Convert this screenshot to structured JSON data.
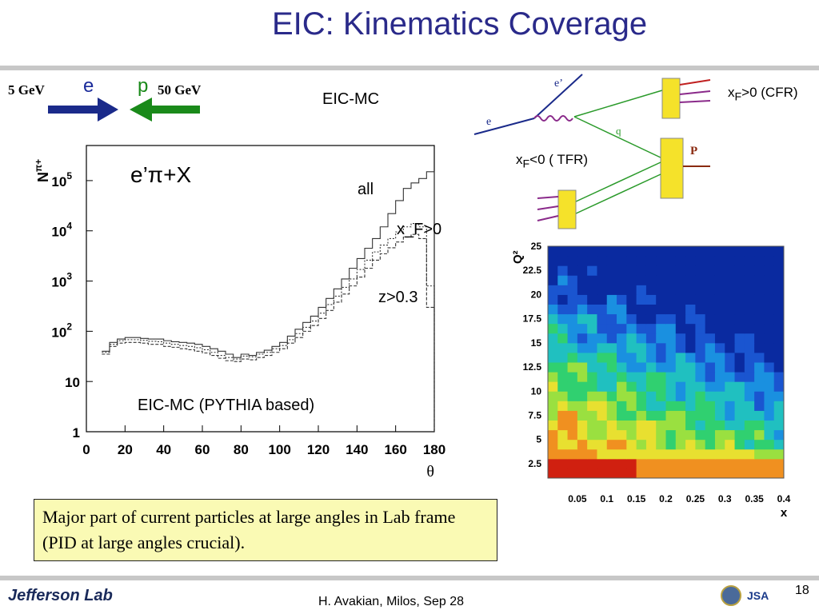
{
  "slide": {
    "title": "EIC: Kinematics Coverage",
    "beam": {
      "e_energy": "5 GeV",
      "e_label": "e",
      "p_label": "p",
      "p_energy": "50 GeV"
    },
    "eicmc_label": "EIC-MC",
    "note": "Major part of current particles at large angles in Lab frame (PID at large angles crucial).",
    "footer": {
      "logo": "Jefferson Lab",
      "text": "H. Avakian, Milos,  Sep 28",
      "page": "18"
    },
    "diagram": {
      "e_label": "e",
      "eprime_label": "e’",
      "q_label": "q",
      "p_label": "P",
      "cfr_label": "x_F>0 (CFR)",
      "tfr_label": "x_F<0 ( TFR)"
    },
    "colors": {
      "title": "#2a2a8a",
      "e_arrow": "#1a2a8a",
      "p_arrow": "#1a8a1a",
      "note_bg": "#fafab4"
    }
  },
  "chart_data": [
    {
      "type": "histogram",
      "title": "",
      "reaction_label": "e’π+X",
      "caption": "EIC-MC (PYTHIA based)",
      "xlabel": "θ",
      "ylabel": "N^π+",
      "xlim": [
        0,
        180
      ],
      "ylim": [
        1,
        500000
      ],
      "yscale": "log",
      "x_ticks": [
        "0",
        "20",
        "40",
        "60",
        "80",
        "100",
        "120",
        "140",
        "160",
        "180"
      ],
      "y_ticks": [
        "1",
        "10",
        "10^2",
        "10^3",
        "10^4",
        "10^5"
      ],
      "bin_edges": [
        8,
        12,
        16,
        20,
        24,
        28,
        32,
        36,
        40,
        44,
        48,
        52,
        56,
        60,
        64,
        68,
        72,
        76,
        80,
        84,
        88,
        92,
        96,
        100,
        104,
        108,
        112,
        116,
        120,
        124,
        128,
        132,
        136,
        140,
        144,
        148,
        152,
        156,
        160,
        164,
        168,
        172,
        176,
        180
      ],
      "series": [
        {
          "name": "all",
          "style": "solid",
          "values": [
            40,
            60,
            70,
            75,
            75,
            72,
            70,
            70,
            65,
            62,
            60,
            58,
            55,
            50,
            45,
            40,
            35,
            30,
            35,
            33,
            38,
            42,
            50,
            60,
            80,
            110,
            150,
            200,
            300,
            450,
            700,
            1100,
            1800,
            2800,
            4500,
            7000,
            12000,
            22000,
            40000,
            70000,
            90000,
            110000,
            150000
          ]
        },
        {
          "name": "x_F>0",
          "style": "dotted",
          "values": [
            38,
            55,
            65,
            68,
            68,
            66,
            63,
            62,
            58,
            55,
            52,
            50,
            47,
            43,
            38,
            33,
            30,
            28,
            32,
            31,
            35,
            38,
            45,
            52,
            68,
            90,
            120,
            160,
            230,
            340,
            500,
            750,
            1100,
            1700,
            2600,
            3800,
            5200,
            7000,
            9500,
            12000,
            14000,
            12000,
            800
          ]
        },
        {
          "name": "z>0.3",
          "style": "dashed",
          "values": [
            35,
            50,
            58,
            60,
            60,
            58,
            55,
            55,
            50,
            48,
            45,
            43,
            40,
            37,
            33,
            29,
            26,
            25,
            28,
            27,
            30,
            33,
            38,
            45,
            58,
            75,
            100,
            130,
            180,
            260,
            380,
            550,
            800,
            1200,
            1800,
            2600,
            3500,
            4600,
            6000,
            7500,
            8500,
            7000,
            300
          ]
        }
      ],
      "annotations": [
        "all",
        "x_F>0",
        "z>0.3"
      ]
    },
    {
      "type": "heatmap",
      "title": "",
      "xlabel": "x",
      "ylabel": "Q²",
      "xlim": [
        0,
        0.4
      ],
      "ylim": [
        1,
        25
      ],
      "x_ticks": [
        "0.05",
        "0.1",
        "0.15",
        "0.2",
        "0.25",
        "0.3",
        "0.35",
        "0.4"
      ],
      "y_ticks": [
        "2.5",
        "5",
        "7.5",
        "10",
        "12.5",
        "15",
        "17.5",
        "20",
        "22.5",
        "25"
      ],
      "palette": [
        "#0a2aa0",
        "#1a55d0",
        "#1a90e0",
        "#20c0c0",
        "#30d070",
        "#9ae040",
        "#e8e030",
        "#f09020",
        "#d02010"
      ]
    }
  ]
}
